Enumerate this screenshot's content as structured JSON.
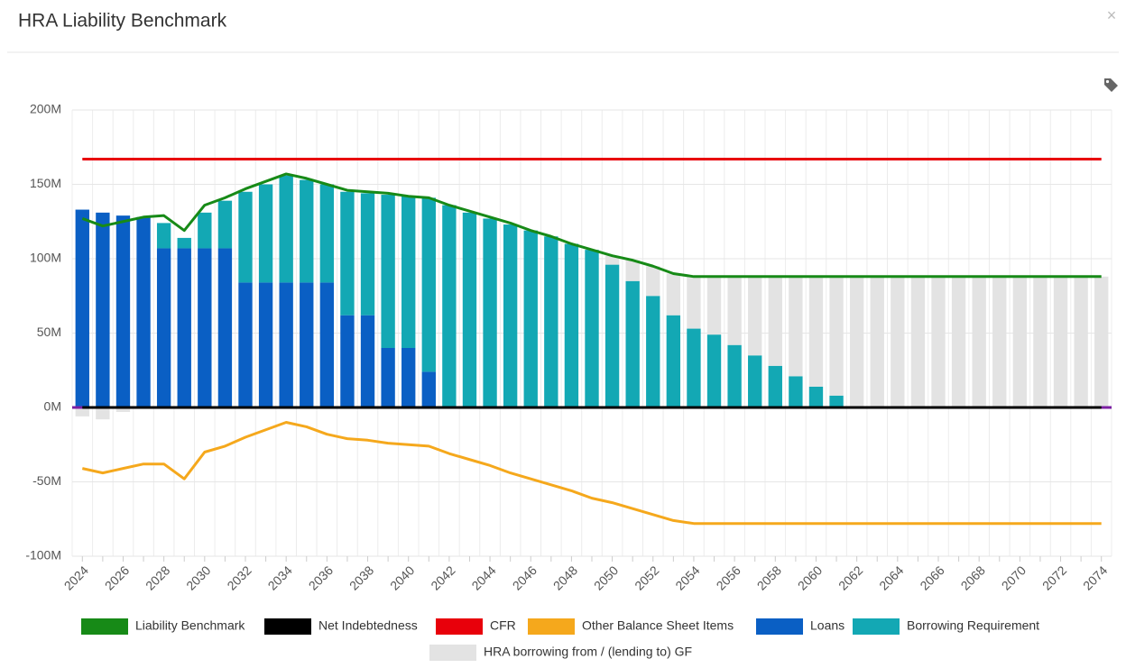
{
  "chart_data": {
    "type": "bar",
    "title": "HRA Liability Benchmark",
    "categories": [
      "2024",
      null,
      "2026",
      null,
      "2028",
      null,
      "2030",
      null,
      "2032",
      null,
      "2034",
      null,
      "2036",
      null,
      "2038",
      null,
      "2040",
      null,
      "2042",
      null,
      "2044",
      null,
      "2046",
      null,
      "2048",
      null,
      "2050",
      null,
      "2052",
      null,
      "2054",
      null,
      "2056",
      null,
      "2058",
      null,
      "2060",
      null,
      "2062",
      null,
      "2064",
      null,
      "2066",
      null,
      "2068",
      null,
      "2070",
      null,
      "2072",
      null,
      "2074"
    ],
    "ylim": [
      -100,
      200
    ],
    "yticks": [
      {
        "value": -100,
        "label": "-100M"
      },
      {
        "value": -50,
        "label": "-50M"
      },
      {
        "value": 0,
        "label": "0M"
      },
      {
        "value": 50,
        "label": "50M"
      },
      {
        "value": 100,
        "label": "100M"
      },
      {
        "value": 150,
        "label": "150M"
      },
      {
        "value": 200,
        "label": "200M"
      }
    ],
    "grid": true,
    "series": [
      {
        "name": "Liability Benchmark",
        "type": "line",
        "color": "#178a17",
        "values": [
          127,
          122,
          125,
          128,
          129,
          119,
          136,
          141,
          147,
          152,
          157,
          154,
          150,
          146,
          145,
          144,
          142,
          141,
          136,
          132,
          128,
          124,
          119,
          115,
          110,
          106,
          102,
          99,
          95,
          90,
          88,
          88,
          88,
          88,
          88,
          88,
          88,
          88,
          88,
          88,
          88,
          88,
          88,
          88,
          88,
          88,
          88,
          88,
          88,
          88,
          88
        ]
      },
      {
        "name": "Net Indebtedness",
        "type": "line",
        "color": "#000000",
        "values": [
          0,
          0,
          0,
          0,
          0,
          0,
          0,
          0,
          0,
          0,
          0,
          0,
          0,
          0,
          0,
          0,
          0,
          0,
          0,
          0,
          0,
          0,
          0,
          0,
          0,
          0,
          0,
          0,
          0,
          0,
          0,
          0,
          0,
          0,
          0,
          0,
          0,
          0,
          0,
          0,
          0,
          0,
          0,
          0,
          0,
          0,
          0,
          0,
          0,
          0,
          0
        ]
      },
      {
        "name": "CFR",
        "type": "line",
        "color": "#e8000b",
        "values": [
          167,
          167,
          167,
          167,
          167,
          167,
          167,
          167,
          167,
          167,
          167,
          167,
          167,
          167,
          167,
          167,
          167,
          167,
          167,
          167,
          167,
          167,
          167,
          167,
          167,
          167,
          167,
          167,
          167,
          167,
          167,
          167,
          167,
          167,
          167,
          167,
          167,
          167,
          167,
          167,
          167,
          167,
          167,
          167,
          167,
          167,
          167,
          167,
          167,
          167,
          167
        ]
      },
      {
        "name": "Other Balance Sheet Items",
        "type": "line",
        "color": "#f5a81c",
        "values": [
          -41,
          -44,
          -41,
          -38,
          -38,
          -48,
          -30,
          -26,
          -20,
          -15,
          -10,
          -13,
          -18,
          -21,
          -22,
          -24,
          -25,
          -26,
          -31,
          -35,
          -39,
          -44,
          -48,
          -52,
          -56,
          -61,
          -64,
          -68,
          -72,
          -76,
          -78,
          -78,
          -78,
          -78,
          -78,
          -78,
          -78,
          -78,
          -78,
          -78,
          -78,
          -78,
          -78,
          -78,
          -78,
          -78,
          -78,
          -78,
          -78,
          -78,
          -78
        ]
      },
      {
        "name": "Loans",
        "type": "bar",
        "color": "#0a5fc4",
        "values": [
          133,
          131,
          129,
          128,
          107,
          107,
          107,
          107,
          84,
          84,
          84,
          84,
          84,
          62,
          62,
          40,
          40,
          24,
          0,
          0,
          0,
          0,
          0,
          0,
          0,
          0,
          0,
          0,
          0,
          0,
          0,
          0,
          0,
          0,
          0,
          0,
          0,
          0,
          0,
          0,
          0,
          0,
          0,
          0,
          0,
          0,
          0,
          0,
          0,
          0,
          0
        ]
      },
      {
        "name": "Borrowing Requirement",
        "type": "bar",
        "color": "#13a8b4",
        "values": [
          0,
          0,
          0,
          0,
          17,
          7,
          24,
          32,
          61,
          66,
          72,
          69,
          66,
          83,
          82,
          103,
          102,
          117,
          136,
          131,
          127,
          123,
          119,
          115,
          110,
          106,
          96,
          85,
          75,
          62,
          53,
          49,
          42,
          35,
          28,
          21,
          14,
          8,
          0,
          0,
          0,
          0,
          0,
          0,
          0,
          0,
          0,
          0,
          0,
          0,
          0
        ]
      },
      {
        "name": "HRA borrowing from / (lending to) GF",
        "type": "bar",
        "color": "#e3e3e3",
        "values": [
          -6,
          -8,
          -3,
          0,
          0,
          0,
          0,
          0,
          0,
          0,
          0,
          0,
          0,
          0,
          0,
          0,
          0,
          0,
          0,
          0,
          0,
          0,
          0,
          0,
          0,
          0,
          6,
          14,
          20,
          28,
          35,
          39,
          46,
          53,
          60,
          67,
          74,
          80,
          88,
          88,
          88,
          88,
          88,
          88,
          88,
          88,
          88,
          88,
          88,
          88,
          88
        ]
      }
    ]
  }
}
